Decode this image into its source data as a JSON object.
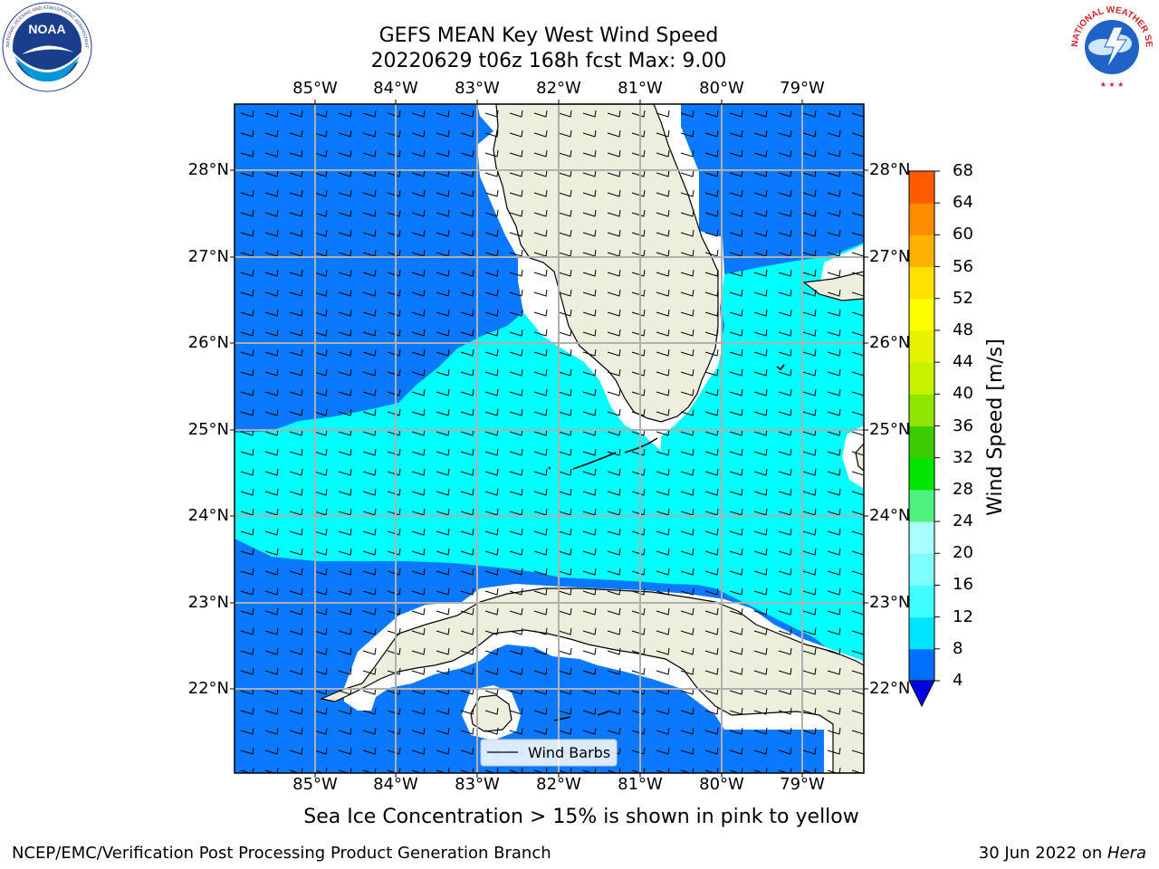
{
  "title": {
    "line1": "GEFS MEAN Key West Wind Speed",
    "line2": "20220629 t06z 168h fcst   Max: 9.00"
  },
  "logos": {
    "noaa_text": "NOAA",
    "noaa_ring": "NATIONAL OCEANIC AND ATMOSPHERIC ADMINISTRATION · U.S. DEPARTMENT OF COMMERCE",
    "nws_ring": "NATIONAL WEATHER SERVICE"
  },
  "axes": {
    "lon_labels": [
      "85°W",
      "84°W",
      "83°W",
      "82°W",
      "81°W",
      "80°W",
      "79°W"
    ],
    "lat_labels": [
      "28°N",
      "27°N",
      "26°N",
      "25°N",
      "24°N",
      "23°N",
      "22°N"
    ]
  },
  "legend": {
    "label": "Wind Barbs"
  },
  "colorbar": {
    "label": "Wind Speed [m/s]",
    "ticks": [
      "68",
      "64",
      "60",
      "56",
      "52",
      "48",
      "44",
      "40",
      "36",
      "32",
      "28",
      "24",
      "20",
      "16",
      "12",
      "8",
      "4"
    ],
    "colors_bottom_to_top": [
      "#006fff",
      "#00e5ff",
      "#3fffff",
      "#7fffff",
      "#a8ffff",
      "#4ff27f",
      "#00e400",
      "#3ccc00",
      "#8ee600",
      "#c6f200",
      "#e6f200",
      "#ffff00",
      "#ffe100",
      "#ffb300",
      "#ff8c00",
      "#ff5a00",
      "#ff2a00",
      "#ff0000"
    ],
    "extend_color": "#0000e6"
  },
  "colors": {
    "low_wind": "#0a78ff",
    "mid_wind": "#00ffff",
    "land": "#eeeedc",
    "coast_buffer": "#ffffff",
    "grid": "#b0b0b0"
  },
  "notes": {
    "sea_ice": "Sea Ice Concentration > 15% is shown in pink to yellow"
  },
  "footer": {
    "left": "NCEP/EMC/Verification Post Processing Product Generation Branch",
    "right_prefix": "30 Jun 2022 on ",
    "right_machine": "Hera"
  }
}
